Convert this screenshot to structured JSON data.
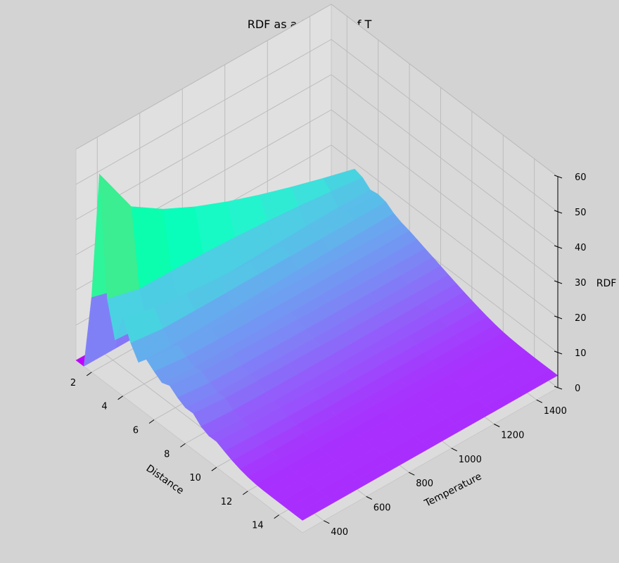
{
  "chart_data": {
    "type": "surface3d",
    "title": "RDF as a function of T",
    "xlabel": "Distance",
    "ylabel": "Temperature",
    "zlabel": "RDF",
    "x_ticks": [
      "2",
      "4",
      "6",
      "8",
      "10",
      "12",
      "14"
    ],
    "y_ticks": [
      "400",
      "600",
      "800",
      "1000",
      "1200",
      "1400"
    ],
    "z_ticks": [
      "0",
      "10",
      "20",
      "30",
      "40",
      "50",
      "60"
    ],
    "xlim": [
      1,
      15.5
    ],
    "ylim": [
      300,
      1500
    ],
    "zlim": [
      0,
      60
    ],
    "colormap": "rainbow",
    "grid": true,
    "distance": [
      1,
      1.5,
      2,
      2.5,
      3,
      3.5,
      4,
      4.5,
      5,
      5.5,
      6,
      6.5,
      7,
      7.5,
      8,
      8.5,
      9,
      9.5,
      10,
      10.5,
      11,
      11.5,
      12,
      12.5,
      13,
      13.5,
      14,
      14.5,
      15,
      15.5
    ],
    "temperature": [
      300,
      450,
      600,
      750,
      900,
      1050,
      1200,
      1350,
      1500
    ],
    "rdf_peaks": [
      {
        "distance": 2.5,
        "temperature_max_height": 59,
        "temperature_min_height": 18
      },
      {
        "distance": 4.0,
        "temperature_max_height": 22,
        "temperature_min_height": 14
      },
      {
        "distance": 5.5,
        "temperature_max_height": 14,
        "temperature_min_height": 10
      },
      {
        "distance": 7.0,
        "temperature_max_height": 11,
        "temperature_min_height": 8
      },
      {
        "distance": 8.5,
        "temperature_max_height": 8,
        "temperature_min_height": 6
      },
      {
        "distance": 10.0,
        "temperature_max_height": 6,
        "temperature_min_height": 5
      }
    ],
    "rdf_asymptote": 3.5
  }
}
